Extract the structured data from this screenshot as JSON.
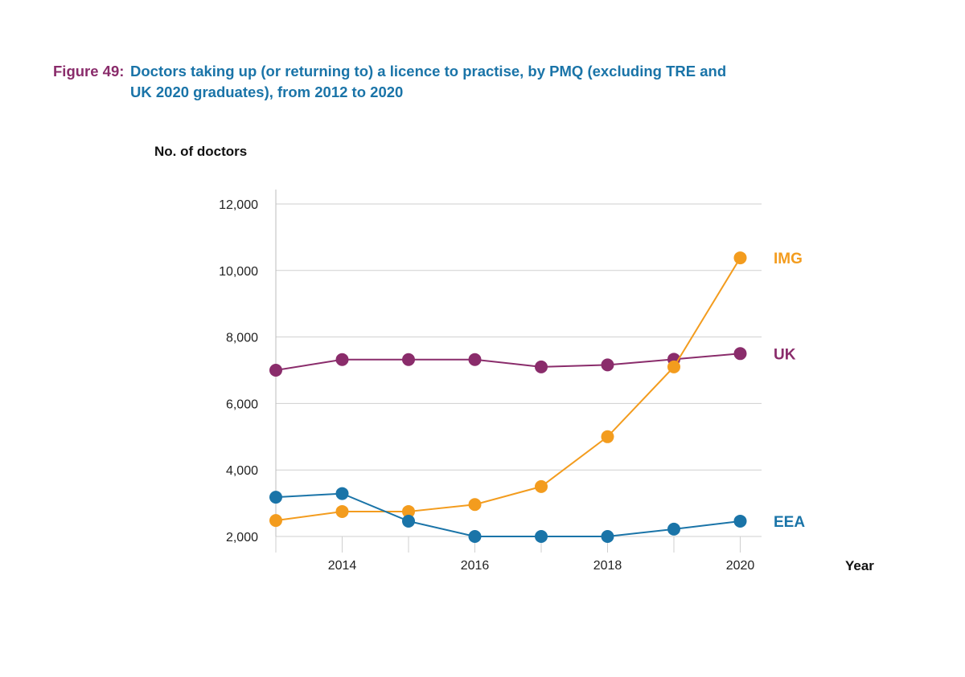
{
  "figure": {
    "label": "Figure 49:",
    "title_line1": "Doctors taking up (or returning to) a licence to practise, by PMQ (excluding TRE and",
    "title_line2": "UK 2020 graduates), from 2012 to 2020"
  },
  "chart_data": {
    "type": "line",
    "title": "Doctors taking up (or returning to) a licence to practise, by PMQ (excluding TRE and UK 2020 graduates), from 2012 to 2020",
    "ylabel": "No. of doctors",
    "xlabel": "Year",
    "ylim": [
      2000,
      12000
    ],
    "yticks": [
      2000,
      4000,
      6000,
      8000,
      10000,
      12000
    ],
    "ytick_labels": [
      "2,000",
      "4,000",
      "6,000",
      "8,000",
      "10,000",
      "12,000"
    ],
    "xlim": [
      2013,
      2020
    ],
    "xticks": [
      2014,
      2016,
      2018,
      2020
    ],
    "xtick_labels": [
      "2014",
      "2016",
      "2018",
      "2020"
    ],
    "x": [
      2013,
      2014,
      2015,
      2016,
      2017,
      2018,
      2019,
      2020
    ],
    "grid": true,
    "legend": "end-of-line labels, right",
    "series": [
      {
        "name": "UK",
        "color": "#8a2c6b",
        "values": [
          7000,
          7320,
          7320,
          7320,
          7100,
          7160,
          7330,
          7500
        ]
      },
      {
        "name": "IMG",
        "color": "#f39c1e",
        "values": [
          2480,
          2750,
          2750,
          2960,
          3500,
          5000,
          7100,
          10380
        ]
      },
      {
        "name": "EEA",
        "color": "#1a74a8",
        "values": [
          3180,
          3290,
          2460,
          2000,
          2000,
          2000,
          2220,
          2460
        ]
      }
    ]
  }
}
